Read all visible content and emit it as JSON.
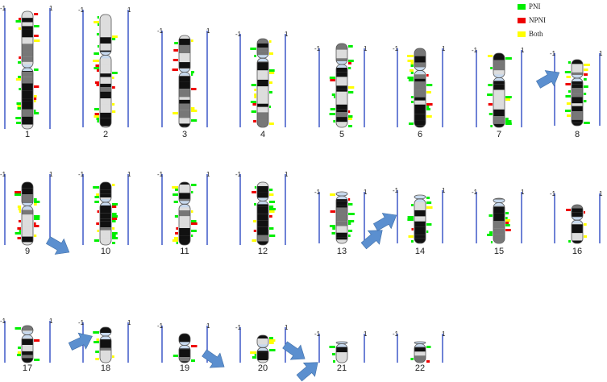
{
  "legend": {
    "items": [
      {
        "label": "PNI",
        "color": "#00ee00"
      },
      {
        "label": "NPNI",
        "color": "#ee0000"
      },
      {
        "label": "Both",
        "color": "#ffff00"
      }
    ]
  },
  "tick_labels": {
    "minus": "-1",
    "plus": "1"
  },
  "colors": {
    "axis": "#1f3fbf",
    "arrow": "#5b8fcf",
    "chromosome_outline": "#555555",
    "centromere": "#c7d9ee",
    "dark_band": "#111111",
    "mid_band": "#777777",
    "light_band": "#dddddd"
  },
  "chromosomes": [
    {
      "label": "1"
    },
    {
      "label": "2"
    },
    {
      "label": "3"
    },
    {
      "label": "4"
    },
    {
      "label": "5"
    },
    {
      "label": "6"
    },
    {
      "label": "7"
    },
    {
      "label": "8"
    },
    {
      "label": "9"
    },
    {
      "label": "10"
    },
    {
      "label": "11"
    },
    {
      "label": "12"
    },
    {
      "label": "13"
    },
    {
      "label": "14"
    },
    {
      "label": "15"
    },
    {
      "label": "16"
    },
    {
      "label": "17"
    },
    {
      "label": "18"
    },
    {
      "label": "19"
    },
    {
      "label": "20"
    },
    {
      "label": "21"
    },
    {
      "label": "22"
    }
  ]
}
